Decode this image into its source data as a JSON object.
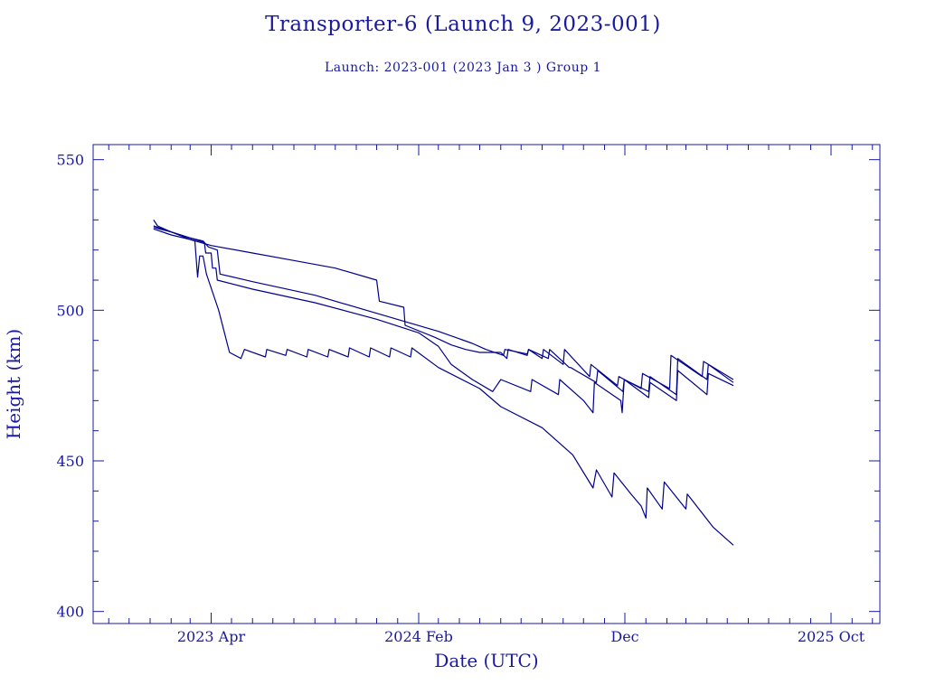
{
  "title": "Transporter-6 (Launch 9, 2023-001)",
  "subtitle": "Launch: 2023-001  (2023 Jan  3 )  Group 1",
  "colors": {
    "line": "#00008b",
    "axis": "#1a1aa0",
    "background": "#ffffff"
  },
  "chart_data": {
    "type": "line",
    "title": "Transporter-6 (Launch 9, 2023-001)",
    "subtitle": "Launch: 2023-001  (2023 Jan  3 )  Group 1",
    "xlabel": "Date (UTC)",
    "ylabel": "Height (km)",
    "xlim": [
      "2022-10-09",
      "2025-12-12"
    ],
    "ylim": [
      396,
      555
    ],
    "x_ticks": [
      {
        "date": "2023-04-01",
        "label": "2023 Apr"
      },
      {
        "date": "2024-02-01",
        "label": "2024 Feb"
      },
      {
        "date": "2024-12-01",
        "label": "Dec"
      },
      {
        "date": "2025-10-01",
        "label": "2025 Oct"
      }
    ],
    "y_ticks": [
      400,
      450,
      500,
      550
    ],
    "grid": false,
    "legend": "none",
    "series": [
      {
        "points": [
          [
            "2023-01-06",
            530
          ],
          [
            "2023-01-12",
            528
          ],
          [
            "2023-02-01",
            526
          ],
          [
            "2023-03-01",
            523.5
          ],
          [
            "2023-04-01",
            521.5
          ],
          [
            "2023-06-01",
            519
          ],
          [
            "2023-08-01",
            516.5
          ],
          [
            "2023-10-01",
            514
          ],
          [
            "2023-12-01",
            510
          ],
          [
            "2023-12-05",
            503
          ],
          [
            "2024-01-10",
            501
          ],
          [
            "2024-01-12",
            495
          ],
          [
            "2024-02-25",
            491
          ],
          [
            "2024-03-20",
            488.5
          ],
          [
            "2024-04-10",
            487
          ],
          [
            "2024-05-01",
            486
          ],
          [
            "2024-06-01",
            486
          ],
          [
            "2024-06-10",
            484
          ],
          [
            "2024-06-12",
            487
          ],
          [
            "2024-07-10",
            485
          ],
          [
            "2024-07-12",
            487
          ],
          [
            "2024-08-01",
            484
          ],
          [
            "2024-08-03",
            487
          ],
          [
            "2024-09-01",
            482
          ],
          [
            "2024-09-03",
            487
          ],
          [
            "2024-10-10",
            478
          ],
          [
            "2024-10-12",
            482
          ],
          [
            "2024-11-20",
            475
          ],
          [
            "2024-11-22",
            478
          ],
          [
            "2024-12-25",
            474
          ],
          [
            "2024-12-27",
            479
          ],
          [
            "2025-02-05",
            474
          ],
          [
            "2025-02-07",
            485
          ],
          [
            "2025-03-25",
            478
          ],
          [
            "2025-03-27",
            483
          ],
          [
            "2025-05-10",
            477
          ]
        ]
      },
      {
        "points": [
          [
            "2023-01-06",
            528
          ],
          [
            "2023-02-01",
            526
          ],
          [
            "2023-03-01",
            524
          ],
          [
            "2023-03-20",
            523
          ],
          [
            "2023-03-28",
            521
          ],
          [
            "2023-04-10",
            520
          ],
          [
            "2023-04-14",
            512
          ],
          [
            "2023-06-01",
            509.5
          ],
          [
            "2023-09-01",
            505
          ],
          [
            "2023-12-01",
            499
          ],
          [
            "2024-03-01",
            493
          ],
          [
            "2024-04-20",
            489
          ],
          [
            "2024-05-10",
            487
          ],
          [
            "2024-06-05",
            485
          ],
          [
            "2024-06-07",
            487
          ],
          [
            "2024-07-10",
            485.5
          ],
          [
            "2024-07-12",
            487
          ],
          [
            "2024-08-10",
            484
          ],
          [
            "2024-08-12",
            487
          ],
          [
            "2024-09-10",
            481
          ],
          [
            "2024-09-12",
            481
          ],
          [
            "2024-10-20",
            476
          ],
          [
            "2024-10-22",
            480
          ],
          [
            "2024-11-28",
            473
          ],
          [
            "2024-11-30",
            477
          ],
          [
            "2025-01-05",
            473
          ],
          [
            "2025-01-07",
            478
          ],
          [
            "2025-02-15",
            472
          ],
          [
            "2025-02-17",
            484
          ],
          [
            "2025-04-01",
            477
          ],
          [
            "2025-04-03",
            482
          ],
          [
            "2025-05-10",
            476
          ]
        ]
      },
      {
        "points": [
          [
            "2023-01-06",
            527.5
          ],
          [
            "2023-02-01",
            526
          ],
          [
            "2023-03-01",
            524
          ],
          [
            "2023-03-22",
            522.5
          ],
          [
            "2023-03-24",
            519
          ],
          [
            "2023-04-01",
            519
          ],
          [
            "2023-04-03",
            514
          ],
          [
            "2023-04-08",
            514
          ],
          [
            "2023-04-10",
            510
          ],
          [
            "2023-06-01",
            507
          ],
          [
            "2023-09-01",
            502.5
          ],
          [
            "2023-12-01",
            497
          ],
          [
            "2024-02-01",
            492.5
          ],
          [
            "2024-03-01",
            488
          ],
          [
            "2024-03-20",
            482
          ],
          [
            "2024-04-20",
            477
          ],
          [
            "2024-05-20",
            473
          ],
          [
            "2024-06-01",
            477
          ],
          [
            "2024-07-15",
            473
          ],
          [
            "2024-07-17",
            477
          ],
          [
            "2024-08-25",
            472
          ],
          [
            "2024-08-27",
            477
          ],
          [
            "2024-10-01",
            470
          ],
          [
            "2024-10-15",
            466
          ],
          [
            "2024-10-17",
            476
          ],
          [
            "2024-11-25",
            470
          ],
          [
            "2024-11-27",
            466
          ],
          [
            "2024-11-30",
            477
          ],
          [
            "2025-01-05",
            471
          ],
          [
            "2025-01-07",
            476
          ],
          [
            "2025-02-15",
            470
          ],
          [
            "2025-02-17",
            480
          ],
          [
            "2025-04-01",
            472
          ],
          [
            "2025-04-03",
            479
          ],
          [
            "2025-05-10",
            475
          ]
        ]
      },
      {
        "points": [
          [
            "2023-01-06",
            527
          ],
          [
            "2023-02-01",
            525
          ],
          [
            "2023-03-01",
            523.5
          ],
          [
            "2023-03-08",
            523
          ],
          [
            "2023-03-10",
            517
          ],
          [
            "2023-03-12",
            511
          ],
          [
            "2023-03-15",
            518
          ],
          [
            "2023-03-20",
            518
          ],
          [
            "2023-03-25",
            512
          ],
          [
            "2023-04-12",
            500
          ],
          [
            "2023-04-20",
            493
          ],
          [
            "2023-04-28",
            486
          ],
          [
            "2023-05-15",
            484
          ],
          [
            "2023-05-20",
            487
          ],
          [
            "2023-06-20",
            484.5
          ],
          [
            "2023-06-22",
            487
          ],
          [
            "2023-07-20",
            485
          ],
          [
            "2023-07-22",
            487
          ],
          [
            "2023-08-20",
            484.5
          ],
          [
            "2023-08-22",
            487
          ],
          [
            "2023-09-20",
            484.5
          ],
          [
            "2023-09-22",
            487
          ],
          [
            "2023-10-20",
            484.5
          ],
          [
            "2023-10-22",
            487.5
          ],
          [
            "2023-11-20",
            484.5
          ],
          [
            "2023-11-22",
            487.5
          ],
          [
            "2023-12-20",
            484.5
          ],
          [
            "2023-12-22",
            487.5
          ],
          [
            "2024-01-20",
            484.5
          ],
          [
            "2024-01-22",
            487.5
          ],
          [
            "2024-03-01",
            481
          ],
          [
            "2024-05-01",
            474
          ],
          [
            "2024-06-01",
            468
          ],
          [
            "2024-08-01",
            461
          ],
          [
            "2024-09-15",
            452
          ],
          [
            "2024-10-15",
            441
          ],
          [
            "2024-10-20",
            447
          ],
          [
            "2024-11-12",
            438
          ],
          [
            "2024-11-15",
            446
          ],
          [
            "2024-12-10",
            439
          ],
          [
            "2024-12-25",
            435
          ],
          [
            "2025-01-01",
            431
          ],
          [
            "2025-01-03",
            441
          ],
          [
            "2025-01-25",
            434
          ],
          [
            "2025-01-28",
            443
          ],
          [
            "2025-03-01",
            434
          ],
          [
            "2025-03-03",
            439
          ],
          [
            "2025-04-10",
            428
          ],
          [
            "2025-05-10",
            422
          ]
        ]
      }
    ]
  }
}
